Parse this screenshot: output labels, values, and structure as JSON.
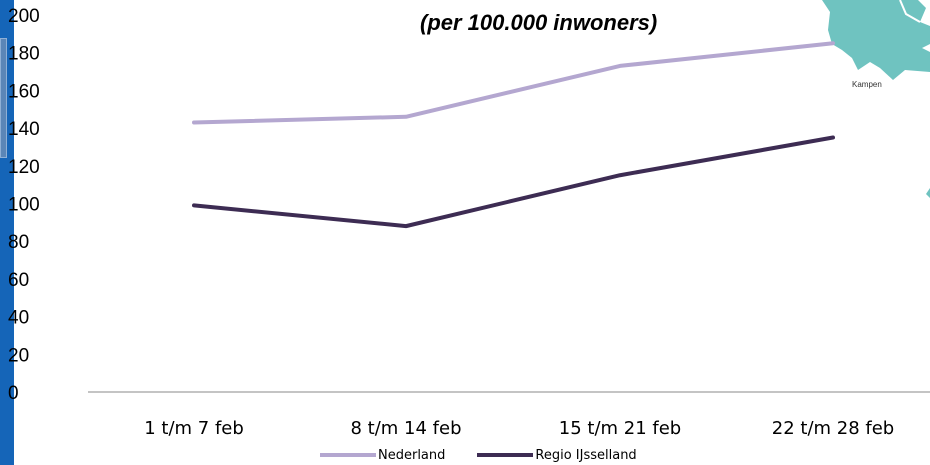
{
  "chart_data": {
    "type": "line",
    "title": "(per 100.000 inwoners)",
    "categories": [
      "1 t/m 7 feb",
      "8 t/m 14 feb",
      "15 t/m 21 feb",
      "22 t/m 28 feb"
    ],
    "series": [
      {
        "name": "Nederland",
        "values": [
          143,
          146,
          173,
          185
        ],
        "color": "#b4a7d0"
      },
      {
        "name": "Regio IJsselland",
        "values": [
          99,
          88,
          115,
          135
        ],
        "color": "#3d2c53"
      }
    ],
    "ylim": [
      0,
      200
    ],
    "yticks": [
      0,
      20,
      40,
      60,
      80,
      100,
      120,
      140,
      160,
      180,
      200
    ],
    "grid": false,
    "legend_position": "bottom"
  },
  "colors": {
    "side_bar": "#1565b8",
    "axis": "#b0b0b0",
    "map_accent": "#6fc3c0"
  },
  "decorations": {
    "map_label": "Kampen"
  }
}
